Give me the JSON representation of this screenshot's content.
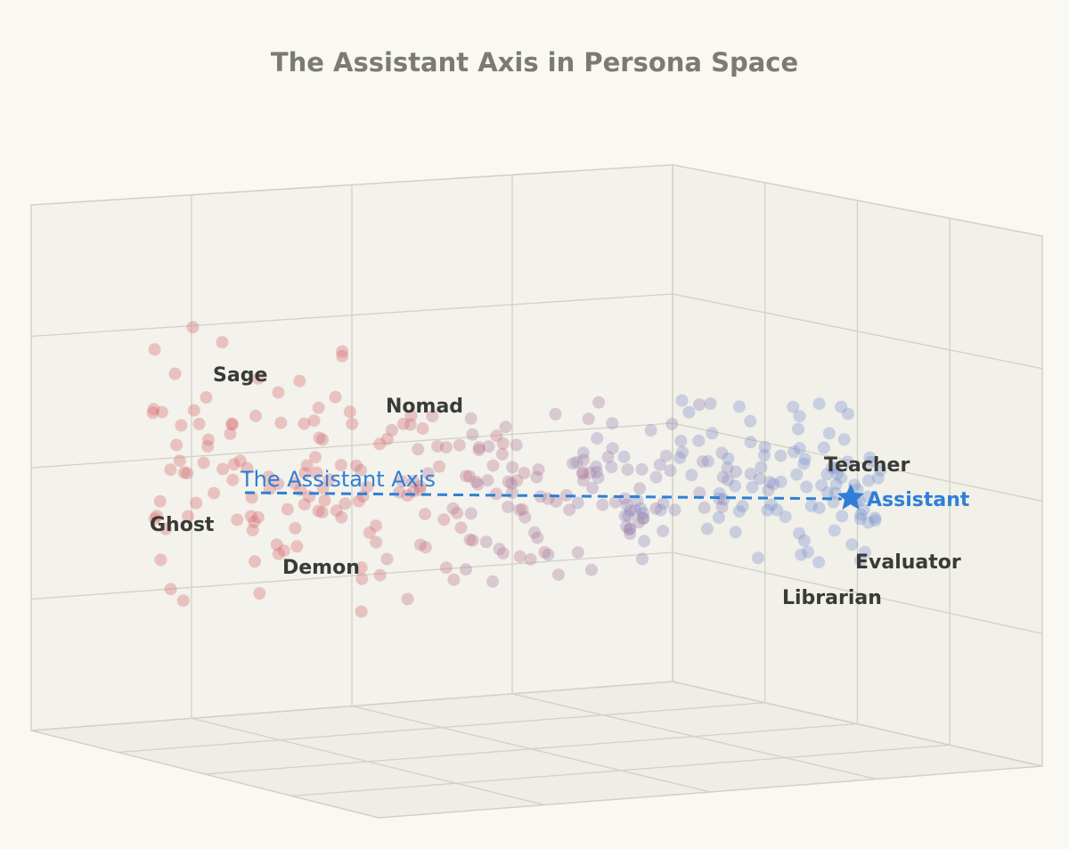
{
  "title": "The Assistant Axis in Persona Space",
  "axis_label": "The Assistant Axis",
  "anchor_label": "Assistant",
  "personas": [
    "Sage",
    "Nomad",
    "Ghost",
    "Demon",
    "Teacher",
    "Evaluator",
    "Librarian"
  ]
}
